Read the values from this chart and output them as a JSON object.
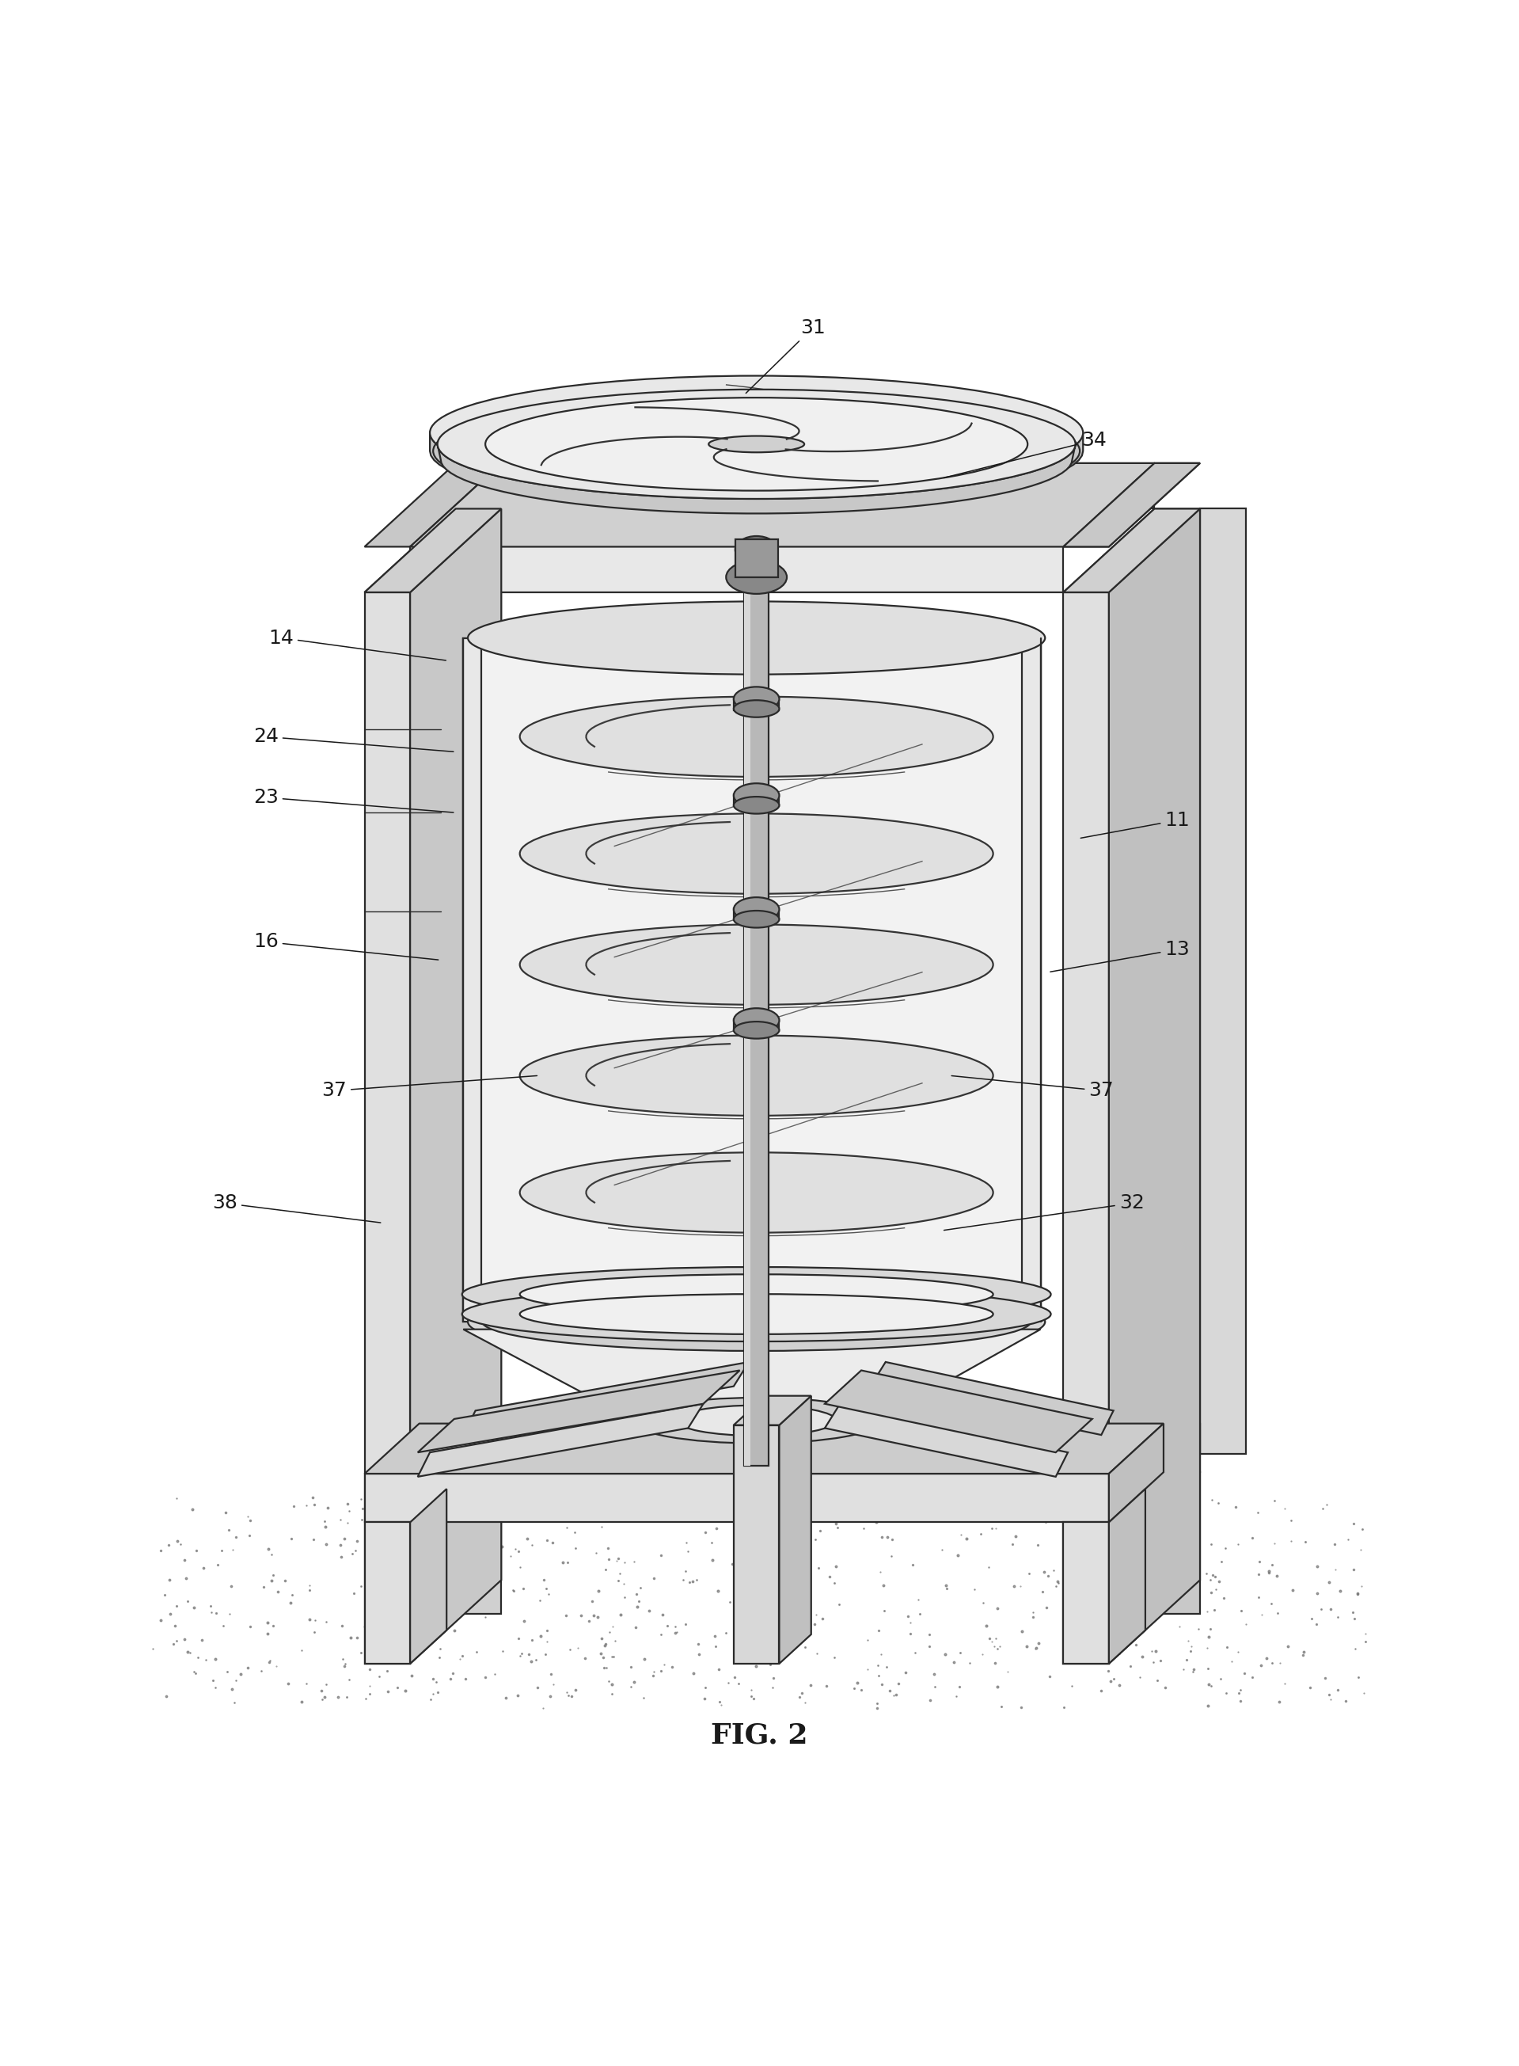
{
  "title": "FIG. 2",
  "title_fontsize": 26,
  "background_color": "#ffffff",
  "line_color": "#2a2a2a",
  "line_width": 1.6,
  "label_fontsize": 18,
  "arrow_linewidth": 1.1,
  "labels": {
    "31": [
      0.535,
      0.964,
      0.49,
      0.92
    ],
    "34": [
      0.72,
      0.89,
      0.62,
      0.865
    ],
    "14": [
      0.185,
      0.76,
      0.295,
      0.745
    ],
    "24": [
      0.175,
      0.695,
      0.3,
      0.685
    ],
    "23": [
      0.175,
      0.655,
      0.3,
      0.645
    ],
    "16": [
      0.175,
      0.56,
      0.29,
      0.548
    ],
    "11": [
      0.775,
      0.64,
      0.71,
      0.628
    ],
    "13": [
      0.775,
      0.555,
      0.69,
      0.54
    ],
    "37L": [
      0.22,
      0.462,
      0.355,
      0.472
    ],
    "37R": [
      0.725,
      0.462,
      0.625,
      0.472
    ],
    "38": [
      0.148,
      0.388,
      0.252,
      0.375
    ],
    "32": [
      0.745,
      0.388,
      0.62,
      0.37
    ]
  }
}
